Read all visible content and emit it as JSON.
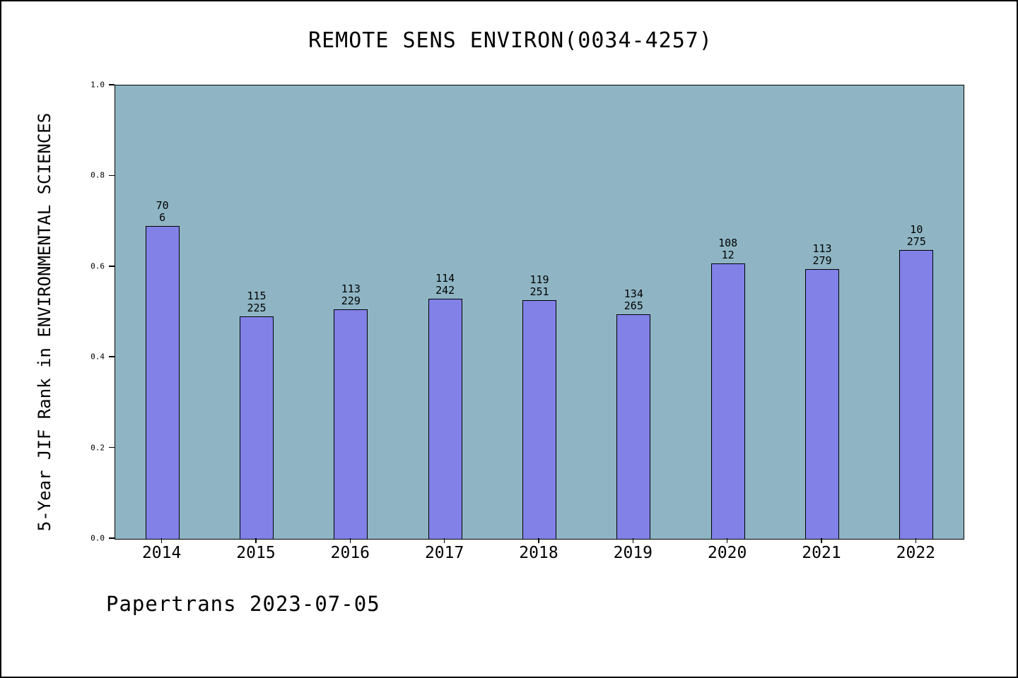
{
  "title": "REMOTE SENS ENVIRON(0034-4257)",
  "footer": "Papertrans 2023-07-05",
  "chart_data": {
    "type": "bar",
    "title": "REMOTE SENS ENVIRON(0034-4257)",
    "xlabel": "",
    "ylabel": "5-Year JIF Rank in ENVIRONMENTAL SCIENCES",
    "categories": [
      "2014",
      "2015",
      "2016",
      "2017",
      "2018",
      "2019",
      "2020",
      "2021",
      "2022"
    ],
    "values": [
      0.69,
      0.49,
      0.507,
      0.53,
      0.527,
      0.495,
      0.607,
      0.595,
      0.637
    ],
    "bar_labels": [
      [
        "70",
        "6"
      ],
      [
        "115",
        "225"
      ],
      [
        "113",
        "229"
      ],
      [
        "114",
        "242"
      ],
      [
        "119",
        "251"
      ],
      [
        "134",
        "265"
      ],
      [
        "108",
        "12"
      ],
      [
        "113",
        "279"
      ],
      [
        "10",
        "275"
      ]
    ],
    "ylim": [
      0,
      1
    ],
    "yticks": [
      0.0,
      0.2,
      0.4,
      0.6,
      0.8,
      1.0
    ],
    "ytick_labels": [
      "0.0",
      "0.2",
      "0.4",
      "0.6",
      "0.8",
      "1.0"
    ],
    "grid": false,
    "legend": "none",
    "colors": {
      "bar_fill": "#8181e8",
      "bar_border": "#000000",
      "plot_background": "#8fb5c4",
      "page_background": "#ffffff",
      "text": "#000000"
    }
  }
}
